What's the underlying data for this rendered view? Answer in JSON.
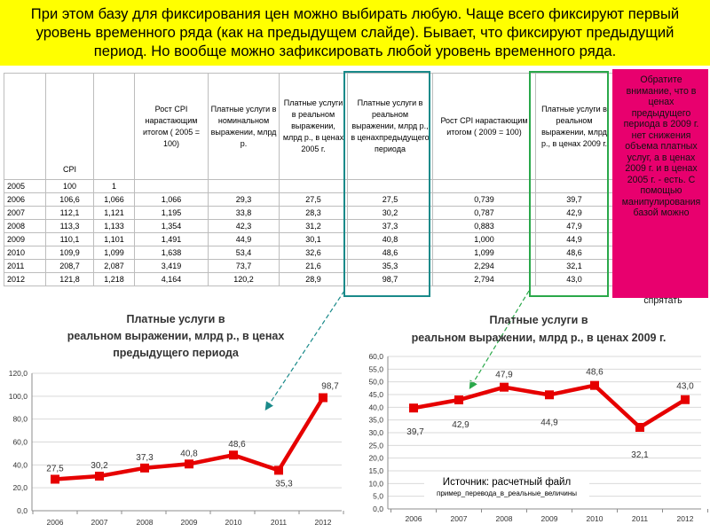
{
  "banner": {
    "lines": [
      "При этом базу для фиксирования цен можно выбирать любую. Чаще всего фиксируют первый",
      "уровень временного ряда (как на предыдущем слайде). Бывает, что фиксируют предыдущий",
      "период. Но вообще можно зафиксировать любой уровень временного ряда."
    ]
  },
  "table": {
    "headers": [
      "",
      "CPI",
      "",
      "Рост CPI нарастающим итогом ( 2005 = 100)",
      "Платные услуги в номинальном выражении, млрд р.",
      "Платные услуги в реальном выражении, млрд р., в ценах 2005 г.",
      "Платные услуги в реальном выражении, млрд р., в ценахпредыдущего периода",
      "Рост CPI нарастающим итогом ( 2009 = 100)",
      "Платные услуги в реальном выражении, млрд р., в ценах 2009 г."
    ],
    "rows": [
      [
        "2005",
        "100",
        "1",
        "",
        "",
        "",
        "",
        "",
        ""
      ],
      [
        "2006",
        "106,6",
        "1,066",
        "1,066",
        "29,3",
        "27,5",
        "27,5",
        "0,739",
        "39,7"
      ],
      [
        "2007",
        "112,1",
        "1,121",
        "1,195",
        "33,8",
        "28,3",
        "30,2",
        "0,787",
        "42,9"
      ],
      [
        "2008",
        "113,3",
        "1,133",
        "1,354",
        "42,3",
        "31,2",
        "37,3",
        "0,883",
        "47,9"
      ],
      [
        "2009",
        "110,1",
        "1,101",
        "1,491",
        "44,9",
        "30,1",
        "40,8",
        "1,000",
        "44,9"
      ],
      [
        "2010",
        "109,9",
        "1,099",
        "1,638",
        "53,4",
        "32,6",
        "48,6",
        "1,099",
        "48,6"
      ],
      [
        "2011",
        "208,7",
        "2,087",
        "3,419",
        "73,7",
        "21,6",
        "35,3",
        "2,294",
        "32,1"
      ],
      [
        "2012",
        "121,8",
        "1,218",
        "4,164",
        "120,2",
        "28,9",
        "98,7",
        "2,794",
        "43,0"
      ]
    ]
  },
  "note": {
    "text": "Обратите внимание, что в ценах предыдущего периода в 2009 г. нет снижения объема платных услуг, а в ценах 2009 г. и в ценах 2005 г. - есть. С помощью манипулирования базой можно",
    "tail": "спрятать"
  },
  "source": {
    "line1": "Источник: расчетный файл",
    "line2": "пример_перевода_в_реальные_величины"
  },
  "colors": {
    "banner": "#ffff00",
    "note": "#e8006e",
    "line": "#e60000",
    "frame1": "#1a8a8a",
    "frame2": "#2aa84a"
  },
  "chart_data": [
    {
      "type": "line",
      "title": "Платные услуги в реальном выражении, млрд р., в ценах предыдущего периода",
      "title_lines": [
        "Платные услуги в",
        "реальном выражении, млрд р., в ценах",
        "предыдущего периода"
      ],
      "categories": [
        "2006",
        "2007",
        "2008",
        "2009",
        "2010",
        "2011",
        "2012"
      ],
      "values": [
        27.5,
        30.2,
        37.3,
        40.8,
        48.6,
        35.3,
        98.7
      ],
      "value_labels": [
        "27,5",
        "30,2",
        "37,3",
        "40,8",
        "48,6",
        "35,3",
        "98,7"
      ],
      "y_ticks": [
        "0,0",
        "20,0",
        "40,0",
        "60,0",
        "80,0",
        "100,0",
        "120,0"
      ],
      "ylim": [
        0,
        120
      ],
      "grid": true
    },
    {
      "type": "line",
      "title": "Платные услуги в реальном выражении, млрд р., в ценах 2009 г.",
      "title_lines": [
        "Платные услуги в",
        "реальном выражении, млрд р., в ценах 2009 г."
      ],
      "categories": [
        "2006",
        "2007",
        "2008",
        "2009",
        "2010",
        "2011",
        "2012"
      ],
      "values": [
        39.7,
        42.9,
        47.9,
        44.9,
        48.6,
        32.1,
        43.0
      ],
      "value_labels": [
        "39,7",
        "42,9",
        "47,9",
        "44,9",
        "48,6",
        "32,1",
        "43,0"
      ],
      "y_ticks": [
        "0,0",
        "5,0",
        "10,0",
        "15,0",
        "20,0",
        "25,0",
        "30,0",
        "35,0",
        "40,0",
        "45,0",
        "50,0",
        "55,0",
        "60,0"
      ],
      "ylim": [
        0,
        60
      ],
      "grid": true
    }
  ]
}
